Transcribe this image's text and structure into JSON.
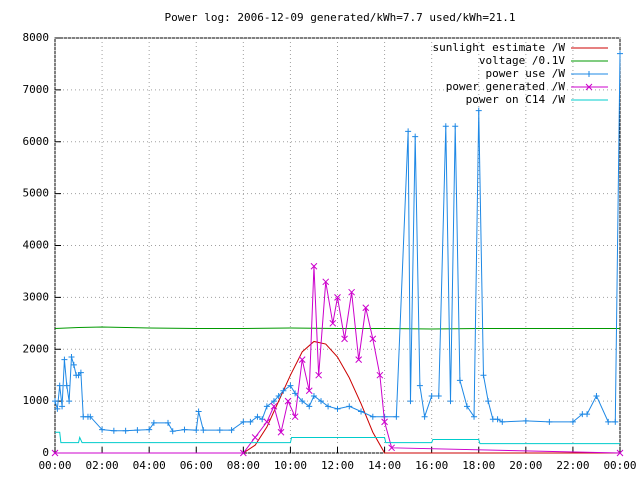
{
  "chart_data": {
    "type": "line",
    "title": "Power log: 2006-12-09 generated/kWh=7.7 used/kWh=21.1",
    "xlim": [
      0,
      24
    ],
    "xticks": [
      {
        "value": 0,
        "label": "00:00"
      },
      {
        "value": 2,
        "label": "02:00"
      },
      {
        "value": 4,
        "label": "04:00"
      },
      {
        "value": 6,
        "label": "06:00"
      },
      {
        "value": 8,
        "label": "08:00"
      },
      {
        "value": 10,
        "label": "10:00"
      },
      {
        "value": 12,
        "label": "12:00"
      },
      {
        "value": 14,
        "label": "14:00"
      },
      {
        "value": 16,
        "label": "16:00"
      },
      {
        "value": 18,
        "label": "18:00"
      },
      {
        "value": 20,
        "label": "20:00"
      },
      {
        "value": 22,
        "label": "22:00"
      },
      {
        "value": 24,
        "label": "00:00"
      }
    ],
    "ylim": [
      0,
      8000
    ],
    "yticks": [
      0,
      1000,
      2000,
      3000,
      4000,
      5000,
      6000,
      7000,
      8000
    ],
    "grid": true,
    "legend": "top-right",
    "series": [
      {
        "name": "sunlight estimate /W",
        "color": "#cc0000",
        "marker": "none",
        "x": [
          0,
          8,
          8.5,
          9,
          9.5,
          10,
          10.5,
          11,
          11.5,
          12,
          12.5,
          13,
          13.5,
          14,
          24
        ],
        "values": [
          0,
          0,
          150,
          500,
          1000,
          1500,
          1950,
          2150,
          2100,
          1850,
          1450,
          950,
          400,
          0,
          0
        ]
      },
      {
        "name": "voltage /0.1V",
        "color": "#009900",
        "marker": "none",
        "x": [
          0,
          1,
          2,
          3,
          4,
          6,
          8,
          10,
          12,
          14,
          16,
          18,
          20,
          22,
          24
        ],
        "values": [
          2400,
          2420,
          2430,
          2420,
          2410,
          2400,
          2400,
          2410,
          2400,
          2400,
          2390,
          2400,
          2400,
          2400,
          2400
        ]
      },
      {
        "name": "power use /W",
        "color": "#1e88e5",
        "marker": "plus",
        "x": [
          0,
          0.1,
          0.2,
          0.3,
          0.4,
          0.5,
          0.6,
          0.7,
          0.8,
          0.9,
          1.0,
          1.1,
          1.2,
          1.4,
          1.5,
          2.0,
          2.5,
          3,
          3.5,
          4,
          4.2,
          4.8,
          5,
          5.5,
          6,
          6.1,
          6.3,
          7,
          7.5,
          8,
          8.3,
          8.6,
          8.8,
          9,
          9.3,
          9.5,
          9.7,
          10,
          10.2,
          10.5,
          10.8,
          11,
          11.3,
          11.6,
          12,
          12.5,
          13,
          13.5,
          14,
          14.5,
          15,
          15.1,
          15.3,
          15.5,
          15.7,
          16,
          16.3,
          16.6,
          16.8,
          17,
          17.2,
          17.5,
          17.8,
          18,
          18.2,
          18.4,
          18.6,
          18.8,
          19,
          20,
          21,
          22,
          22.4,
          22.6,
          23,
          23.5,
          23.8,
          24
        ],
        "values": [
          1000,
          850,
          1300,
          900,
          1800,
          1300,
          1000,
          1850,
          1700,
          1500,
          1500,
          1550,
          700,
          700,
          700,
          450,
          430,
          430,
          440,
          450,
          580,
          580,
          420,
          450,
          440,
          800,
          440,
          440,
          440,
          600,
          600,
          700,
          650,
          900,
          1000,
          1100,
          1200,
          1300,
          1150,
          1000,
          900,
          1100,
          1000,
          900,
          850,
          900,
          800,
          700,
          700,
          700,
          6200,
          1000,
          6100,
          1300,
          700,
          1100,
          1100,
          6300,
          1000,
          6300,
          1400,
          900,
          700,
          6600,
          1500,
          1000,
          650,
          650,
          600,
          620,
          600,
          600,
          750,
          750,
          1100,
          600,
          600,
          7700
        ]
      },
      {
        "name": "power generated /W",
        "color": "#cc00cc",
        "marker": "cross",
        "x": [
          0,
          8,
          8.5,
          9,
          9.3,
          9.6,
          9.9,
          10.2,
          10.5,
          10.8,
          11,
          11.2,
          11.5,
          11.8,
          12,
          12.3,
          12.6,
          12.9,
          13.2,
          13.5,
          13.8,
          14,
          14.3,
          24
        ],
        "values": [
          0,
          0,
          300,
          600,
          900,
          400,
          1000,
          700,
          1800,
          1200,
          3600,
          1500,
          3300,
          2500,
          3000,
          2200,
          3100,
          1800,
          2800,
          2200,
          1500,
          600,
          100,
          0
        ]
      },
      {
        "name": "power on C14 /W",
        "color": "#00cccc",
        "marker": "none",
        "x": [
          0,
          0.2,
          0.25,
          1,
          1.05,
          1.15,
          10,
          10.05,
          14,
          14.05,
          16,
          16.05,
          18,
          18.05,
          24
        ],
        "values": [
          400,
          400,
          200,
          200,
          300,
          200,
          200,
          300,
          300,
          200,
          200,
          260,
          260,
          180,
          180
        ]
      }
    ]
  }
}
